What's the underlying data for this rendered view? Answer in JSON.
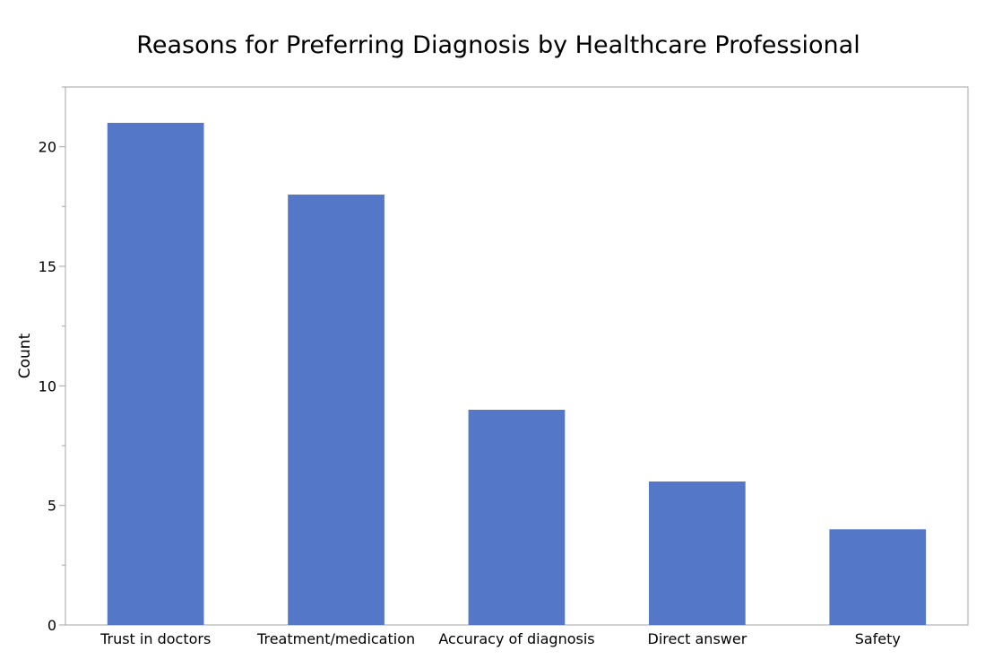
{
  "chart_data": {
    "type": "bar",
    "title": "Reasons for Preferring Diagnosis by Healthcare Professional",
    "xlabel": "",
    "ylabel": "Count",
    "categories": [
      "Trust in doctors",
      "Treatment/medication",
      "Accuracy of diagnosis",
      "Direct answer",
      "Safety"
    ],
    "values": [
      21,
      18,
      9,
      6,
      4
    ],
    "ylim": [
      0,
      22.5
    ],
    "yticks": [
      0,
      5,
      10,
      15,
      20
    ],
    "yminor_step": 2.5,
    "grid": false,
    "legend": "none",
    "colors": {
      "bar": "#5577c7",
      "frame": "#a6a6a6",
      "tick": "#a6a6a6"
    }
  }
}
